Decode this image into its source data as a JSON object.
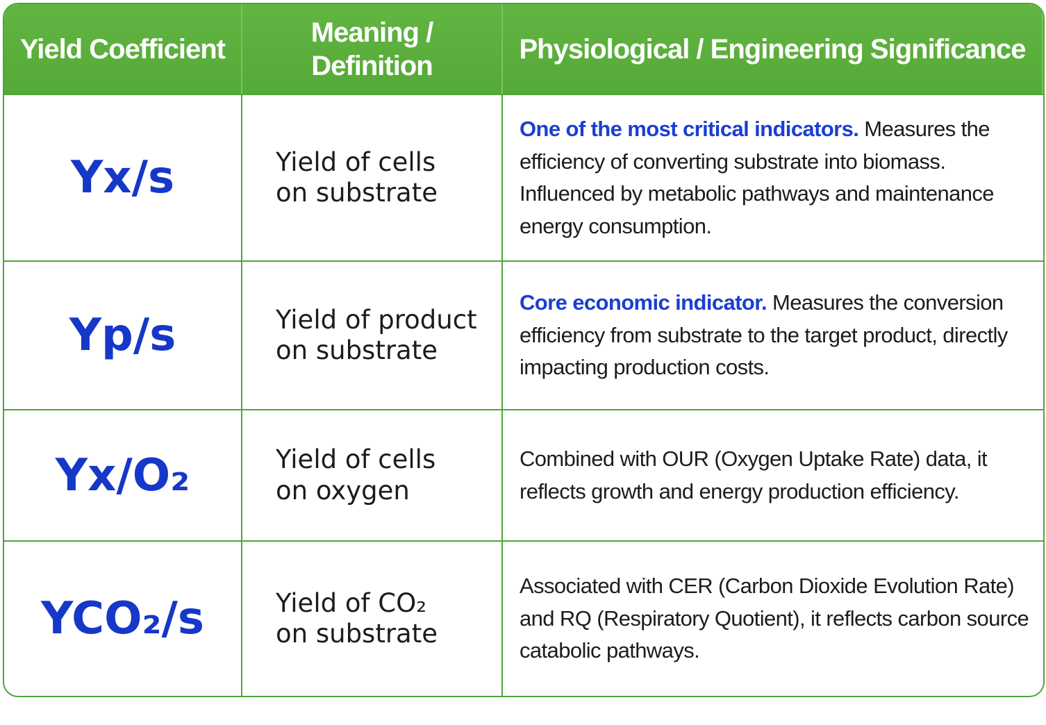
{
  "table": {
    "header": [
      "Yield Coefficient",
      "Meaning / Definition",
      "Physiological / Engineering Significance"
    ],
    "rows": [
      {
        "coefficient": "Yx/s",
        "meaning": [
          "Yield of cells",
          "on substrate"
        ],
        "lead": "One of the most critical indicators.",
        "text": "Measures the efficiency of converting substrate into biomass. Influenced by metabolic pathways and maintenance energy consumption."
      },
      {
        "coefficient": "Yp/s",
        "meaning": [
          "Yield of product",
          "on substrate"
        ],
        "lead": "Core economic indicator.",
        "text": "Measures the conversion efficiency from substrate to the target product, directly impacting production costs."
      },
      {
        "coefficient": "Yx/O₂",
        "meaning": [
          "Yield of cells",
          "on oxygen"
        ],
        "text": "Combined with OUR (Oxygen Uptake Rate) data, it reflects growth and energy production efficiency."
      },
      {
        "coefficient": "YCO₂/s",
        "meaning": [
          "Yield of CO₂",
          "on substrate"
        ],
        "text": "Associated with CER (Carbon Dioxide Evolution Rate) and RQ (Respiratory Quotient), it reflects carbon source catabolic pathways."
      }
    ]
  }
}
